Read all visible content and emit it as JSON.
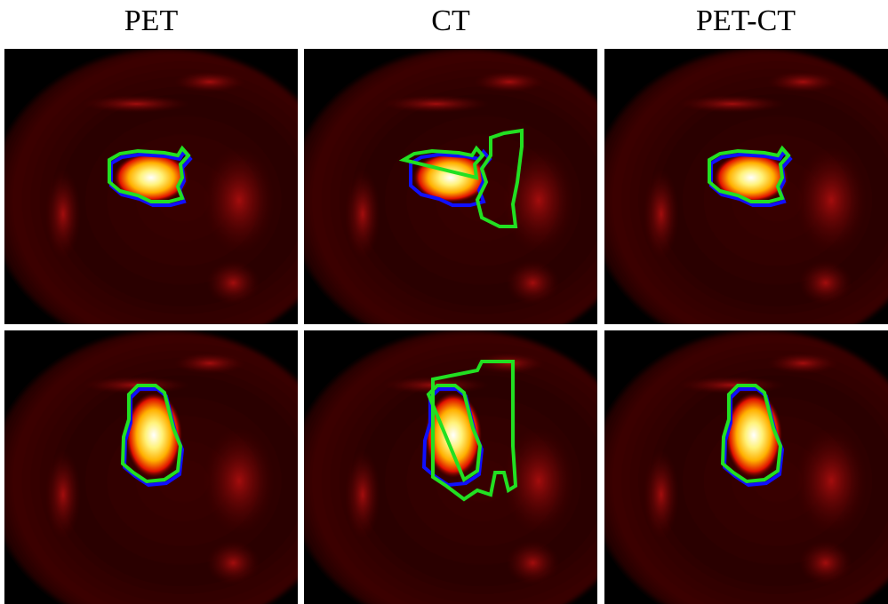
{
  "columns": [
    {
      "title": "PET"
    },
    {
      "title": "CT"
    },
    {
      "title": "PET-CT"
    }
  ]
}
